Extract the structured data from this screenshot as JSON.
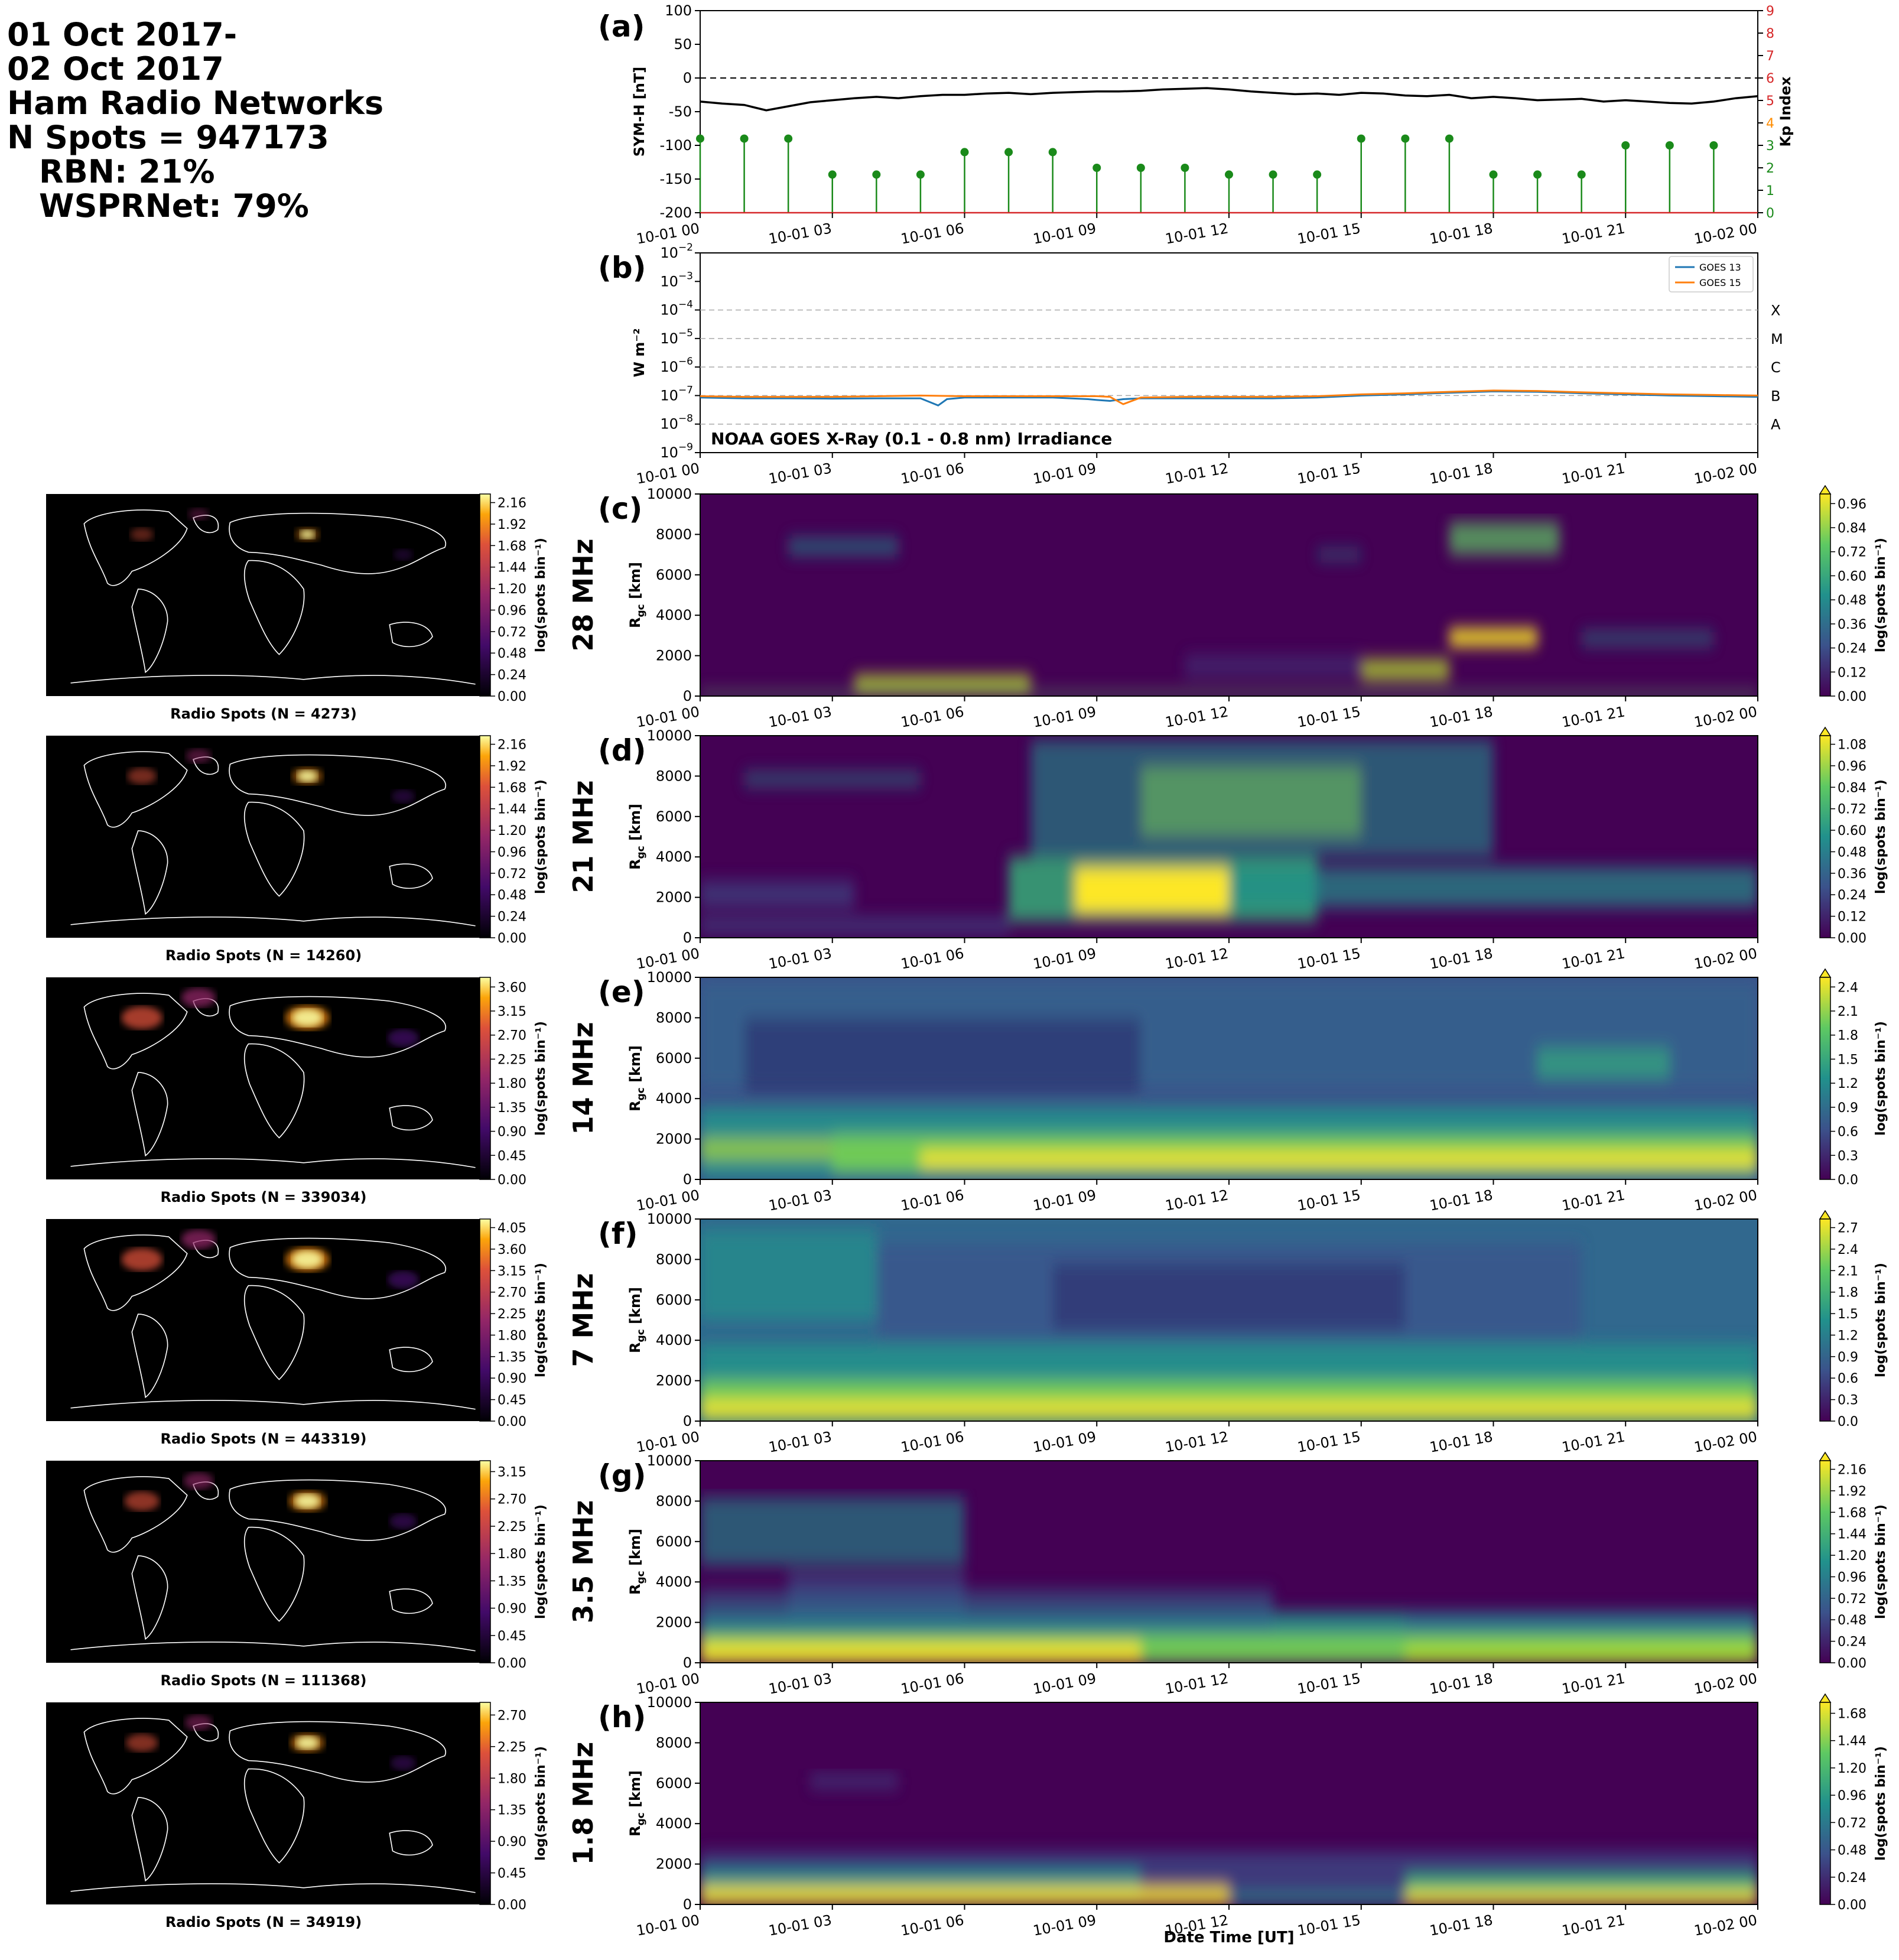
{
  "header": {
    "line1": "01 Oct 2017-",
    "line2": "02 Oct 2017",
    "line3": "Ham Radio Networks",
    "line4": "N Spots = 947173",
    "line5": "RBN: 21%",
    "line6": "WSPRNet: 79%"
  },
  "time_ticks": [
    "10-01 00",
    "10-01 03",
    "10-01 06",
    "10-01 09",
    "10-01 12",
    "10-01 15",
    "10-01 18",
    "10-01 21",
    "10-02 00"
  ],
  "colors": {
    "symh": "#000000",
    "kp": "#1a8a1a",
    "goes13": "#1f77b4",
    "goes15": "#ff7f0e",
    "kp_high": "#d62728",
    "kp_mid": "#ff8c00"
  },
  "chart_data": [
    {
      "id": "a",
      "type": "line",
      "panel_label": "(a)",
      "ylabel": "SYM-H [nT]",
      "y2label": "Kp Index",
      "ylim": [
        -200,
        100
      ],
      "yticks": [
        "100",
        "50",
        "0",
        "-50",
        "-100",
        "-150",
        "-200"
      ],
      "y2lim": [
        0,
        9
      ],
      "y2ticks": [
        "0",
        "1",
        "2",
        "3",
        "4",
        "5",
        "6",
        "7",
        "8",
        "9"
      ],
      "symh": {
        "x_hours": [
          0,
          0.5,
          1,
          1.5,
          2,
          2.5,
          3,
          3.5,
          4,
          4.5,
          5,
          5.5,
          6,
          6.5,
          7,
          7.5,
          8,
          8.5,
          9,
          9.5,
          10,
          10.5,
          11,
          11.5,
          12,
          12.5,
          13,
          13.5,
          14,
          14.5,
          15,
          15.5,
          16,
          16.5,
          17,
          17.5,
          18,
          18.5,
          19,
          19.5,
          20,
          20.5,
          21,
          21.5,
          22,
          22.5,
          23,
          23.5,
          24
        ],
        "values": [
          -35,
          -38,
          -40,
          -48,
          -42,
          -36,
          -33,
          -30,
          -28,
          -30,
          -27,
          -25,
          -25,
          -23,
          -22,
          -24,
          -22,
          -21,
          -20,
          -20,
          -19,
          -17,
          -16,
          -15,
          -17,
          -20,
          -22,
          -24,
          -23,
          -25,
          -22,
          -23,
          -26,
          -27,
          -25,
          -30,
          -28,
          -30,
          -33,
          -32,
          -31,
          -35,
          -33,
          -35,
          -37,
          -38,
          -35,
          -30,
          -27
        ]
      },
      "kp": {
        "x_hours": [
          0,
          1,
          2,
          3,
          4,
          5,
          6,
          7,
          8,
          9,
          10,
          11,
          12,
          13,
          14,
          15,
          16,
          17,
          18,
          19,
          20,
          21,
          22,
          23
        ],
        "values": [
          3.3,
          3.3,
          3.3,
          1.7,
          1.7,
          1.7,
          2.7,
          2.7,
          2.7,
          2.0,
          2.0,
          2.0,
          1.7,
          1.7,
          1.7,
          3.3,
          3.3,
          3.3,
          1.7,
          1.7,
          1.7,
          3.0,
          3.0,
          3.0
        ]
      }
    },
    {
      "id": "b",
      "type": "line",
      "panel_label": "(b)",
      "ylabel": "W m⁻²",
      "yscale": "log",
      "ylim": [
        1e-09,
        0.01
      ],
      "title": "NOAA GOES X-Ray (0.1 - 0.8 nm) Irradiance",
      "flare_classes": [
        "A",
        "B",
        "C",
        "M",
        "X"
      ],
      "legend_position": "upper right",
      "series": [
        {
          "name": "GOES 13",
          "x_hours": [
            0,
            1,
            2,
            3,
            4,
            5,
            5.4,
            5.6,
            6,
            7,
            8,
            8.8,
            9,
            9.3,
            9.6,
            10,
            11,
            12,
            13,
            14,
            15,
            16,
            17,
            18,
            19,
            20,
            21,
            22,
            23,
            24
          ],
          "values": [
            8.5e-08,
            8e-08,
            8e-08,
            7.8e-08,
            8e-08,
            8e-08,
            4.5e-08,
            7.5e-08,
            8.5e-08,
            8.5e-08,
            8.5e-08,
            7.5e-08,
            7e-08,
            6.5e-08,
            7.5e-08,
            8e-08,
            8e-08,
            8e-08,
            8e-08,
            8.5e-08,
            1e-07,
            1.1e-07,
            1.25e-07,
            1.4e-07,
            1.35e-07,
            1.2e-07,
            1.1e-07,
            1e-07,
            9.5e-08,
            9e-08
          ]
        },
        {
          "name": "GOES 15",
          "x_hours": [
            0,
            1,
            2,
            3,
            4,
            5,
            6,
            7,
            8,
            9,
            9.3,
            9.6,
            10,
            11,
            12,
            13,
            14,
            15,
            16,
            17,
            18,
            19,
            20,
            21,
            22,
            23,
            24
          ],
          "values": [
            9.5e-08,
            9e-08,
            9e-08,
            9e-08,
            9.5e-08,
            1e-07,
            9.5e-08,
            9.5e-08,
            9.5e-08,
            9.5e-08,
            9e-08,
            5e-08,
            8.5e-08,
            9e-08,
            9e-08,
            9e-08,
            9.5e-08,
            1.1e-07,
            1.2e-07,
            1.35e-07,
            1.5e-07,
            1.45e-07,
            1.3e-07,
            1.2e-07,
            1.1e-07,
            1.05e-07,
            1e-07
          ]
        }
      ]
    },
    {
      "id": "c",
      "type": "heatmap",
      "panel_label": "(c)",
      "band": "28 MHz",
      "ylabel": "R_gc [km]",
      "ylim": [
        0,
        10000
      ],
      "map_caption": "Radio Spots (N = 4273)",
      "map_cbar_ticks": [
        "0.00",
        "0.24",
        "0.48",
        "0.72",
        "0.96",
        "1.20",
        "1.44",
        "1.68",
        "1.92",
        "2.16"
      ],
      "cbar_label": "log(spots bin⁻¹)",
      "cbar_ticks": [
        "0.00",
        "0.12",
        "0.24",
        "0.36",
        "0.48",
        "0.60",
        "0.72",
        "0.84",
        "0.96"
      ]
    },
    {
      "id": "d",
      "type": "heatmap",
      "panel_label": "(d)",
      "band": "21 MHz",
      "ylabel": "R_gc [km]",
      "ylim": [
        0,
        10000
      ],
      "map_caption": "Radio Spots (N = 14260)",
      "map_cbar_ticks": [
        "0.00",
        "0.24",
        "0.48",
        "0.72",
        "0.96",
        "1.20",
        "1.44",
        "1.68",
        "1.92",
        "2.16"
      ],
      "cbar_label": "log(spots bin⁻¹)",
      "cbar_ticks": [
        "0.00",
        "0.12",
        "0.24",
        "0.36",
        "0.48",
        "0.60",
        "0.72",
        "0.84",
        "0.96",
        "1.08"
      ]
    },
    {
      "id": "e",
      "type": "heatmap",
      "panel_label": "(e)",
      "band": "14 MHz",
      "ylabel": "R_gc [km]",
      "ylim": [
        0,
        10000
      ],
      "map_caption": "Radio Spots (N = 339034)",
      "map_cbar_ticks": [
        "0.00",
        "0.45",
        "0.90",
        "1.35",
        "1.80",
        "2.25",
        "2.70",
        "3.15",
        "3.60"
      ],
      "cbar_label": "log(spots bin⁻¹)",
      "cbar_ticks": [
        "0.0",
        "0.3",
        "0.6",
        "0.9",
        "1.2",
        "1.5",
        "1.8",
        "2.1",
        "2.4"
      ]
    },
    {
      "id": "f",
      "type": "heatmap",
      "panel_label": "(f)",
      "band": "7 MHz",
      "ylabel": "R_gc [km]",
      "ylim": [
        0,
        10000
      ],
      "map_caption": "Radio Spots (N = 443319)",
      "map_cbar_ticks": [
        "0.00",
        "0.45",
        "0.90",
        "1.35",
        "1.80",
        "2.25",
        "2.70",
        "3.15",
        "3.60",
        "4.05"
      ],
      "cbar_label": "log(spots bin⁻¹)",
      "cbar_ticks": [
        "0.0",
        "0.3",
        "0.6",
        "0.9",
        "1.2",
        "1.5",
        "1.8",
        "2.1",
        "2.4",
        "2.7"
      ]
    },
    {
      "id": "g",
      "type": "heatmap",
      "panel_label": "(g)",
      "band": "3.5 MHz",
      "ylabel": "R_gc [km]",
      "ylim": [
        0,
        10000
      ],
      "map_caption": "Radio Spots (N = 111368)",
      "map_cbar_ticks": [
        "0.00",
        "0.45",
        "0.90",
        "1.35",
        "1.80",
        "2.25",
        "2.70",
        "3.15"
      ],
      "cbar_label": "log(spots bin⁻¹)",
      "cbar_ticks": [
        "0.00",
        "0.24",
        "0.48",
        "0.72",
        "0.96",
        "1.20",
        "1.44",
        "1.68",
        "1.92",
        "2.16"
      ]
    },
    {
      "id": "h",
      "type": "heatmap",
      "panel_label": "(h)",
      "band": "1.8 MHz",
      "ylabel": "R_gc [km]",
      "ylim": [
        0,
        10000
      ],
      "map_caption": "Radio Spots (N = 34919)",
      "map_cbar_ticks": [
        "0.00",
        "0.45",
        "0.90",
        "1.35",
        "1.80",
        "2.25",
        "2.70"
      ],
      "cbar_label": "log(spots bin⁻¹)",
      "cbar_ticks": [
        "0.00",
        "0.24",
        "0.48",
        "0.72",
        "0.96",
        "1.20",
        "1.44",
        "1.68"
      ],
      "xlabel": "Date Time [UT]"
    }
  ],
  "heatmap_yticks": [
    "0",
    "2000",
    "4000",
    "6000",
    "8000",
    "10000"
  ]
}
